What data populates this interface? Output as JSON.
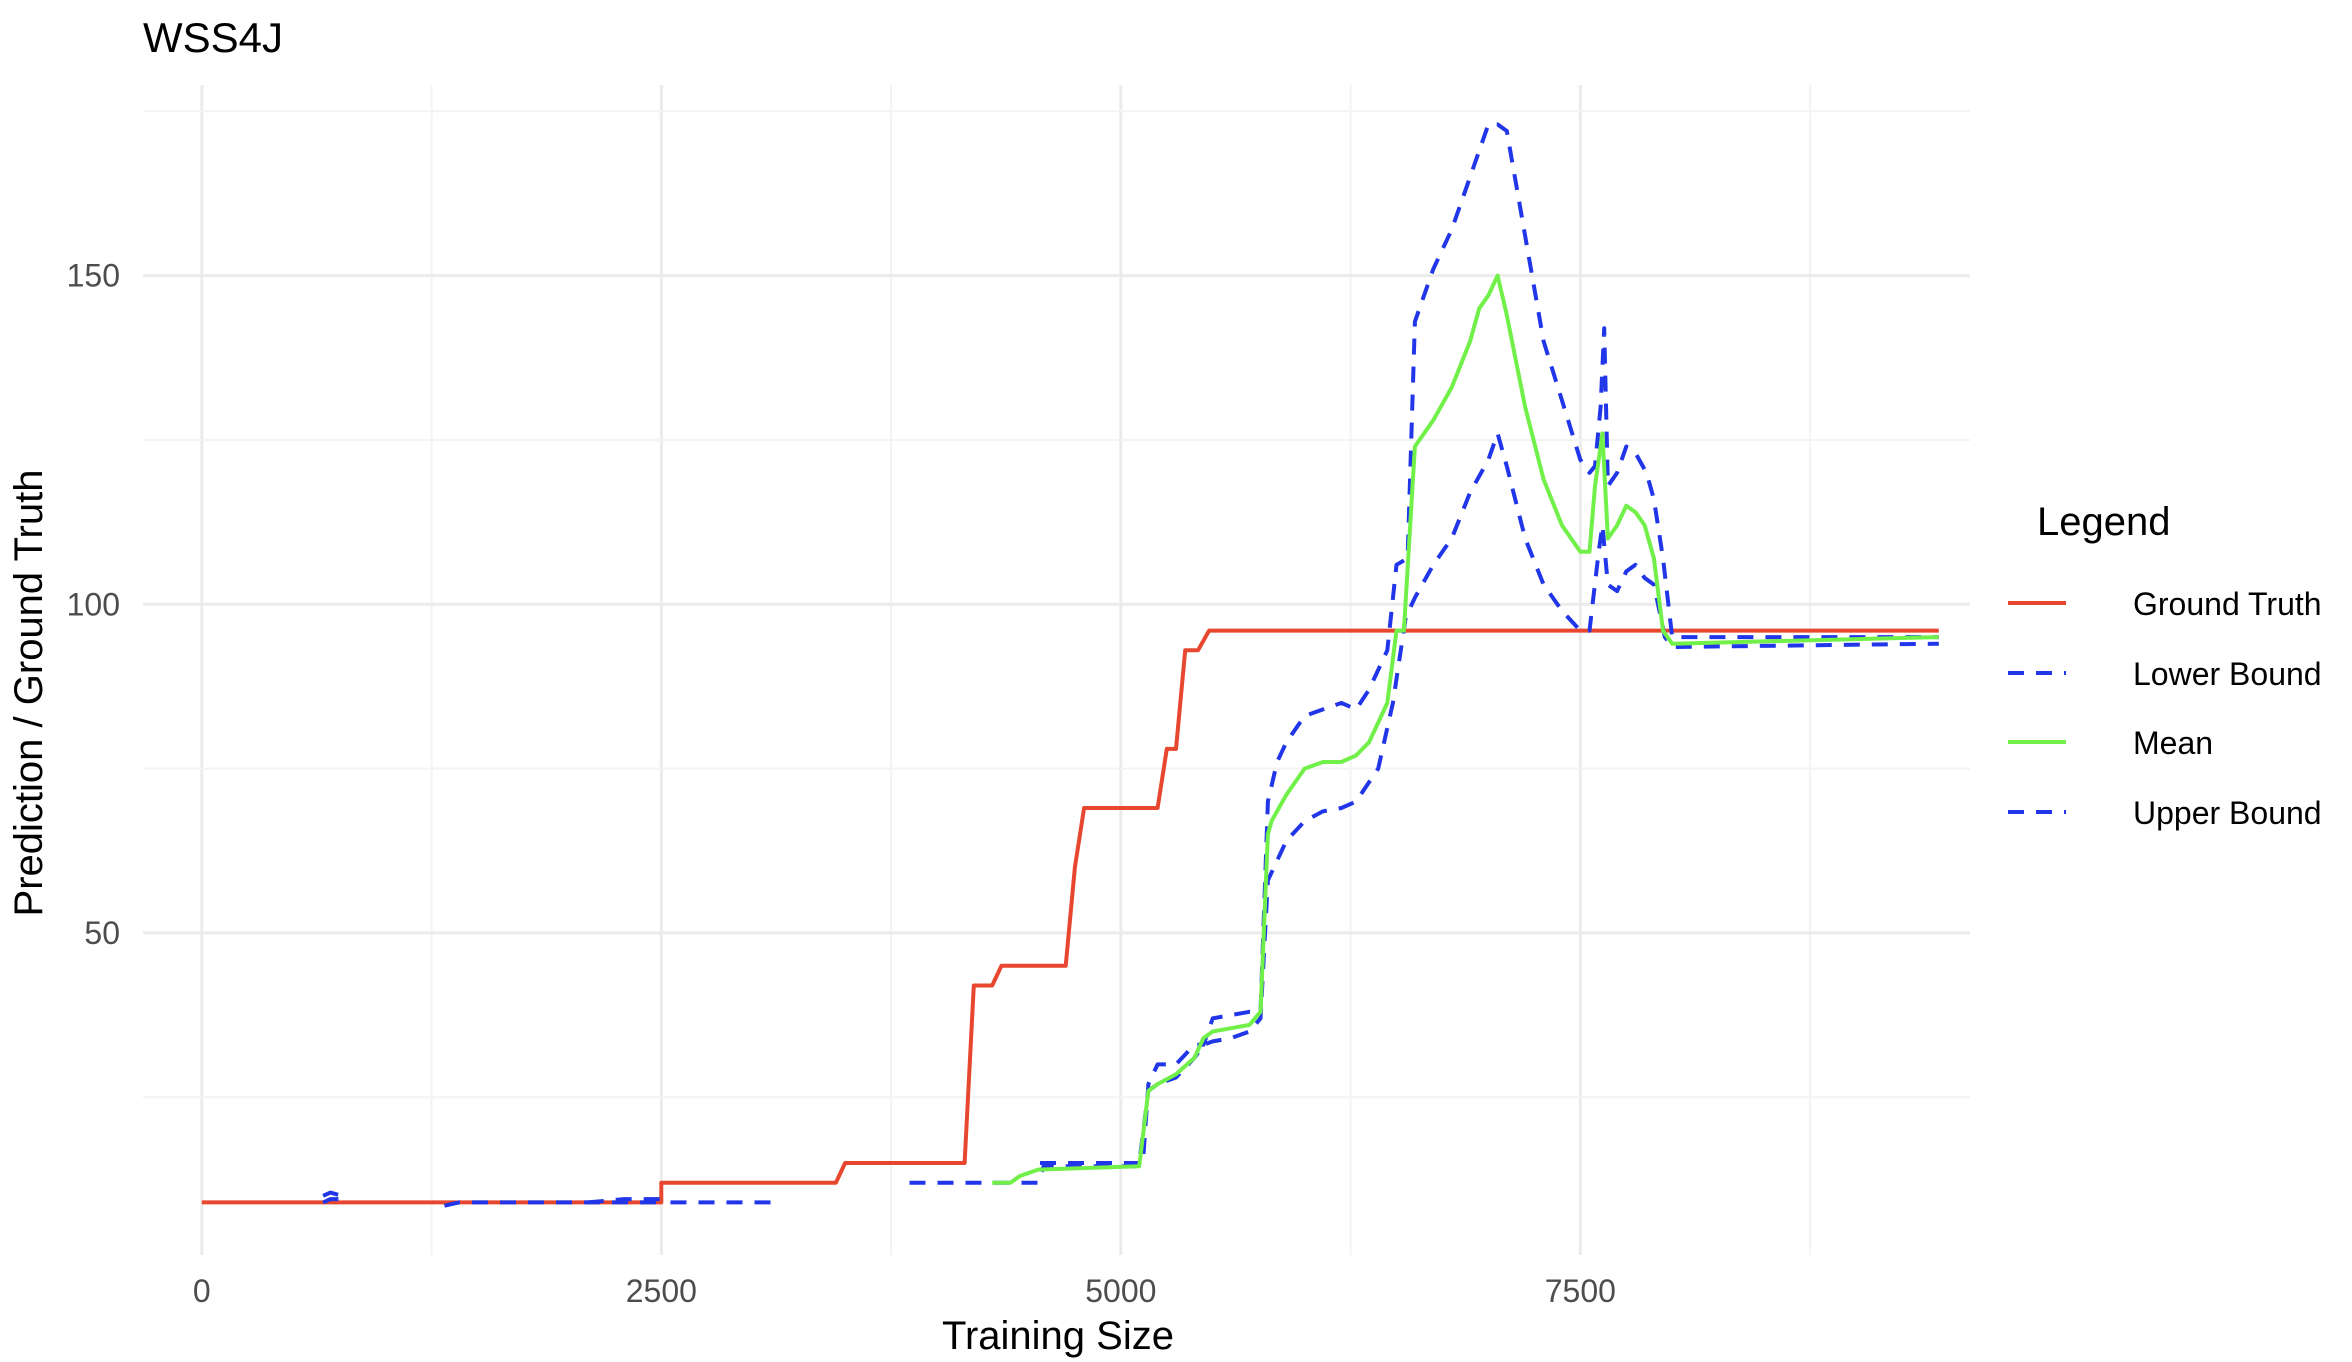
{
  "chart_data": {
    "type": "line",
    "title": "WSS4J",
    "xlabel": "Training Size",
    "ylabel": "Prediction / Ground Truth",
    "xlim": [
      -320,
      9620
    ],
    "ylim": [
      1,
      179
    ],
    "x_ticks": [
      0,
      2500,
      5000,
      7500
    ],
    "y_ticks": [
      50,
      100,
      150
    ],
    "grid": true,
    "legend": {
      "title": "Legend",
      "position": "right"
    },
    "series": [
      {
        "name": "Ground Truth",
        "color": "#e8472f",
        "style": "solid",
        "points": [
          [
            0,
            9
          ],
          [
            2500,
            9
          ],
          [
            2500,
            12
          ],
          [
            3450,
            12
          ],
          [
            3500,
            15
          ],
          [
            4150,
            15
          ],
          [
            4200,
            42
          ],
          [
            4300,
            42
          ],
          [
            4350,
            45
          ],
          [
            4700,
            45
          ],
          [
            4750,
            60
          ],
          [
            4800,
            69
          ],
          [
            5200,
            69
          ],
          [
            5250,
            78
          ],
          [
            5300,
            78
          ],
          [
            5350,
            93
          ],
          [
            5420,
            93
          ],
          [
            5480,
            96
          ],
          [
            9450,
            96
          ]
        ]
      },
      {
        "name": "Lower Bound",
        "color": "#2036e8",
        "style": "dashed",
        "segments": [
          [
            [
              660,
              9
            ],
            [
              700,
              9.5
            ],
            [
              760,
              9.5
            ]
          ],
          [
            [
              1320,
              8.5
            ],
            [
              1400,
              9
            ],
            [
              2500,
              9
            ]
          ],
          [
            [
              2550,
              9
            ],
            [
              3150,
              9
            ]
          ],
          [
            [
              3850,
              12
            ],
            [
              4550,
              12
            ],
            [
              4580,
              14.5
            ],
            [
              5080,
              14.5
            ],
            [
              5100,
              15
            ],
            [
              5150,
              26
            ],
            [
              5200,
              27
            ],
            [
              5300,
              28
            ],
            [
              5400,
              31
            ],
            [
              5450,
              33
            ],
            [
              5500,
              33.5
            ],
            [
              5600,
              34
            ],
            [
              5700,
              35
            ],
            [
              5760,
              37
            ],
            [
              5800,
              58
            ],
            [
              5850,
              61
            ],
            [
              5900,
              64
            ],
            [
              6000,
              67
            ],
            [
              6100,
              68.5
            ],
            [
              6200,
              69
            ],
            [
              6280,
              70
            ],
            [
              6400,
              75
            ],
            [
              6480,
              85
            ],
            [
              6550,
              98
            ],
            [
              6600,
              101
            ],
            [
              6700,
              106
            ],
            [
              6800,
              110
            ],
            [
              6900,
              117
            ],
            [
              7000,
              122
            ],
            [
              7050,
              126
            ],
            [
              7100,
              121
            ],
            [
              7200,
              110
            ],
            [
              7300,
              103
            ],
            [
              7400,
              99
            ],
            [
              7500,
              96
            ],
            [
              7550,
              96
            ],
            [
              7600,
              108
            ],
            [
              7620,
              112
            ],
            [
              7650,
              103
            ],
            [
              7700,
              102
            ],
            [
              7750,
              105
            ],
            [
              7800,
              106
            ],
            [
              7850,
              104
            ],
            [
              7900,
              103
            ],
            [
              7960,
              95
            ],
            [
              8000,
              93.5
            ],
            [
              9450,
              94
            ]
          ]
        ]
      },
      {
        "name": "Mean",
        "color": "#72f04a",
        "style": "solid",
        "points": [
          [
            4300,
            12
          ],
          [
            4400,
            12
          ],
          [
            4450,
            13
          ],
          [
            4550,
            14
          ],
          [
            5100,
            14.5
          ],
          [
            5150,
            26
          ],
          [
            5200,
            27
          ],
          [
            5300,
            28.5
          ],
          [
            5400,
            31
          ],
          [
            5450,
            34
          ],
          [
            5500,
            35
          ],
          [
            5600,
            35.5
          ],
          [
            5700,
            36
          ],
          [
            5760,
            38
          ],
          [
            5800,
            65
          ],
          [
            5820,
            67
          ],
          [
            5900,
            71
          ],
          [
            6000,
            75
          ],
          [
            6100,
            76
          ],
          [
            6200,
            76
          ],
          [
            6280,
            77
          ],
          [
            6350,
            79
          ],
          [
            6400,
            82
          ],
          [
            6450,
            85
          ],
          [
            6500,
            96
          ],
          [
            6540,
            96
          ],
          [
            6600,
            124
          ],
          [
            6700,
            128
          ],
          [
            6800,
            133
          ],
          [
            6900,
            140
          ],
          [
            6950,
            145
          ],
          [
            7000,
            147
          ],
          [
            7050,
            150
          ],
          [
            7100,
            144
          ],
          [
            7200,
            130
          ],
          [
            7300,
            119
          ],
          [
            7400,
            112
          ],
          [
            7500,
            108
          ],
          [
            7550,
            108
          ],
          [
            7580,
            118
          ],
          [
            7620,
            126
          ],
          [
            7650,
            110
          ],
          [
            7700,
            112
          ],
          [
            7750,
            115
          ],
          [
            7800,
            114
          ],
          [
            7850,
            112
          ],
          [
            7900,
            107
          ],
          [
            7950,
            96
          ],
          [
            8000,
            94
          ],
          [
            9450,
            95
          ]
        ]
      },
      {
        "name": "Upper Bound",
        "color": "#2036e8",
        "style": "dashed",
        "segments": [
          [
            [
              660,
              10
            ],
            [
              700,
              10.5
            ],
            [
              760,
              10
            ]
          ],
          [
            [
              2100,
              9
            ],
            [
              2300,
              9.5
            ],
            [
              2500,
              9.5
            ]
          ],
          [
            [
              4560,
              15
            ],
            [
              5090,
              15
            ],
            [
              5120,
              15
            ],
            [
              5150,
              27
            ],
            [
              5200,
              30
            ],
            [
              5300,
              30
            ],
            [
              5400,
              33
            ],
            [
              5450,
              33
            ],
            [
              5500,
              37
            ],
            [
              5600,
              37.5
            ],
            [
              5700,
              38
            ],
            [
              5760,
              38
            ],
            [
              5800,
              70
            ],
            [
              5850,
              76
            ],
            [
              5900,
              79
            ],
            [
              6000,
              83
            ],
            [
              6100,
              84
            ],
            [
              6200,
              85
            ],
            [
              6280,
              84
            ],
            [
              6350,
              87
            ],
            [
              6450,
              93
            ],
            [
              6500,
              106
            ],
            [
              6560,
              107
            ],
            [
              6600,
              143
            ],
            [
              6700,
              151
            ],
            [
              6800,
              157
            ],
            [
              6900,
              165
            ],
            [
              6950,
              169
            ],
            [
              7000,
              173
            ],
            [
              7050,
              173
            ],
            [
              7100,
              172
            ],
            [
              7200,
              156
            ],
            [
              7300,
              140
            ],
            [
              7400,
              131
            ],
            [
              7500,
              122
            ],
            [
              7550,
              120
            ],
            [
              7580,
              121
            ],
            [
              7610,
              130
            ],
            [
              7630,
              142
            ],
            [
              7650,
              118
            ],
            [
              7700,
              120
            ],
            [
              7750,
              124
            ],
            [
              7800,
              123
            ],
            [
              7860,
              120
            ],
            [
              7900,
              116
            ],
            [
              7950,
              107
            ],
            [
              8000,
              95
            ],
            [
              9450,
              95
            ]
          ]
        ]
      }
    ]
  }
}
